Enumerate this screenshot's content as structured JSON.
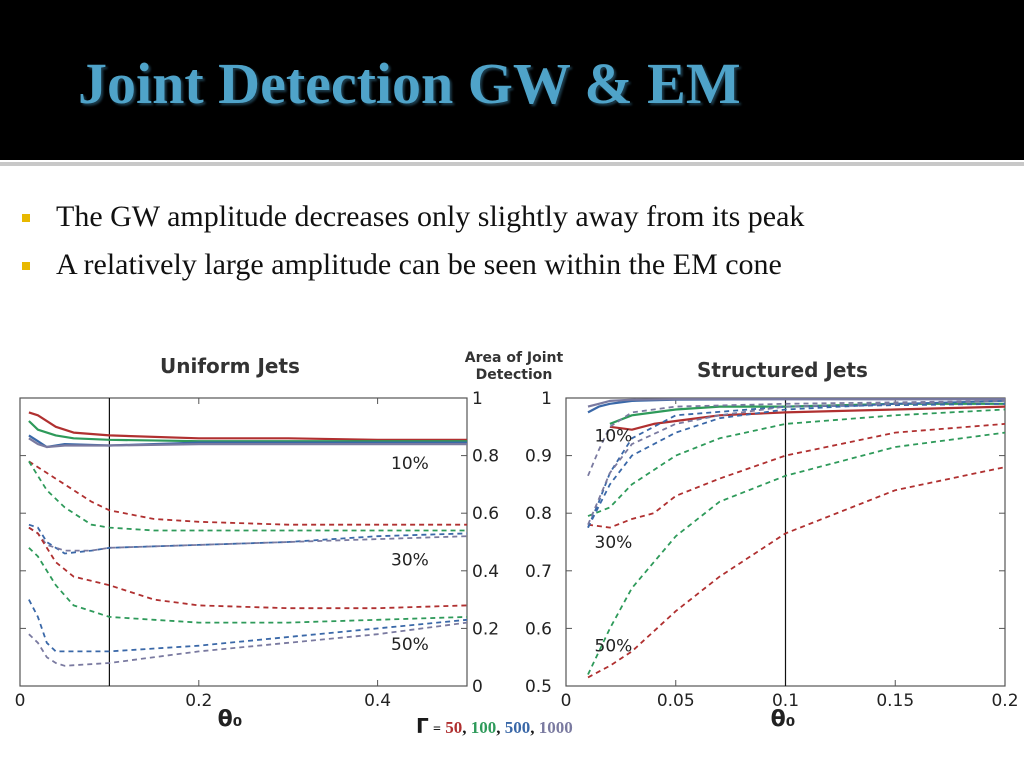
{
  "slide": {
    "title": "Joint Detection GW & EM",
    "bullets": [
      "The GW amplitude decreases only slightly away from its peak",
      "A relatively large amplitude can be seen within the EM cone"
    ],
    "mid_label_line1": "Area of Joint",
    "mid_label_line2": "Detection",
    "legend": {
      "symbol": "Γ",
      "eq": "=",
      "items": [
        {
          "label": "50",
          "color": "#b03030"
        },
        {
          "label": "100",
          "color": "#2e9a5a"
        },
        {
          "label": "500",
          "color": "#3a68a8"
        },
        {
          "label": "1000",
          "color": "#7a7aa0"
        }
      ]
    }
  },
  "chart_data": [
    {
      "type": "line",
      "title": "Uniform Jets",
      "xlabel": "θ₀",
      "ylabel": "Area of Joint Detection",
      "xlim": [
        0,
        0.5
      ],
      "ylim": [
        0,
        1
      ],
      "xticks": [
        "0",
        "0.2",
        "0.4"
      ],
      "xtick_values": [
        0,
        0.2,
        0.4
      ],
      "yticks": [
        "0",
        "0.2",
        "0.4",
        "0.6",
        "0.8",
        "1"
      ],
      "ytick_values": [
        0,
        0.2,
        0.4,
        0.6,
        0.8,
        1
      ],
      "vline": 0.1,
      "annotations": [
        {
          "text": "10%",
          "x": 0.415,
          "y": 0.775
        },
        {
          "text": "30%",
          "x": 0.415,
          "y": 0.44
        },
        {
          "text": "50%",
          "x": 0.415,
          "y": 0.145
        }
      ],
      "colors": {
        "50": "#b03030",
        "100": "#2e9a5a",
        "500": "#3a68a8",
        "1000": "#7a7aa0"
      },
      "series": [
        {
          "gamma": "50",
          "level": "10%",
          "dash": false,
          "x": [
            0.01,
            0.02,
            0.04,
            0.06,
            0.1,
            0.2,
            0.3,
            0.4,
            0.5
          ],
          "y": [
            0.95,
            0.94,
            0.9,
            0.88,
            0.87,
            0.86,
            0.86,
            0.855,
            0.855
          ]
        },
        {
          "gamma": "100",
          "level": "10%",
          "dash": false,
          "x": [
            0.01,
            0.02,
            0.04,
            0.06,
            0.1,
            0.2,
            0.3,
            0.4,
            0.5
          ],
          "y": [
            0.92,
            0.89,
            0.87,
            0.86,
            0.855,
            0.85,
            0.85,
            0.85,
            0.85
          ]
        },
        {
          "gamma": "500",
          "level": "10%",
          "dash": false,
          "x": [
            0.01,
            0.02,
            0.03,
            0.05,
            0.1,
            0.2,
            0.3,
            0.4,
            0.5
          ],
          "y": [
            0.87,
            0.85,
            0.83,
            0.84,
            0.835,
            0.845,
            0.845,
            0.845,
            0.845
          ]
        },
        {
          "gamma": "1000",
          "level": "10%",
          "dash": false,
          "x": [
            0.01,
            0.02,
            0.03,
            0.05,
            0.1,
            0.2,
            0.3,
            0.4,
            0.5
          ],
          "y": [
            0.86,
            0.84,
            0.83,
            0.835,
            0.835,
            0.84,
            0.84,
            0.84,
            0.84
          ]
        },
        {
          "gamma": "50",
          "level": "30%",
          "dash": true,
          "x": [
            0.01,
            0.03,
            0.05,
            0.08,
            0.1,
            0.15,
            0.2,
            0.3,
            0.4,
            0.5
          ],
          "y": [
            0.78,
            0.74,
            0.7,
            0.64,
            0.61,
            0.58,
            0.57,
            0.56,
            0.56,
            0.56
          ]
        },
        {
          "gamma": "100",
          "level": "30%",
          "dash": true,
          "x": [
            0.01,
            0.03,
            0.05,
            0.08,
            0.1,
            0.15,
            0.2,
            0.3,
            0.4,
            0.5
          ],
          "y": [
            0.78,
            0.68,
            0.62,
            0.56,
            0.55,
            0.54,
            0.54,
            0.54,
            0.54,
            0.54
          ]
        },
        {
          "gamma": "500",
          "level": "30%",
          "dash": true,
          "x": [
            0.01,
            0.02,
            0.03,
            0.05,
            0.08,
            0.1,
            0.2,
            0.3,
            0.4,
            0.5
          ],
          "y": [
            0.56,
            0.55,
            0.5,
            0.46,
            0.47,
            0.48,
            0.49,
            0.5,
            0.52,
            0.53
          ]
        },
        {
          "gamma": "1000",
          "level": "30%",
          "dash": true,
          "x": [
            0.01,
            0.02,
            0.03,
            0.05,
            0.08,
            0.1,
            0.2,
            0.3,
            0.4,
            0.5
          ],
          "y": [
            0.55,
            0.53,
            0.49,
            0.47,
            0.47,
            0.48,
            0.49,
            0.5,
            0.51,
            0.52
          ]
        },
        {
          "gamma": "50",
          "level": "50%",
          "dash": true,
          "x": [
            0.01,
            0.02,
            0.04,
            0.06,
            0.1,
            0.15,
            0.2,
            0.3,
            0.4,
            0.5
          ],
          "y": [
            0.55,
            0.53,
            0.43,
            0.38,
            0.35,
            0.3,
            0.28,
            0.27,
            0.27,
            0.28
          ]
        },
        {
          "gamma": "100",
          "level": "50%",
          "dash": true,
          "x": [
            0.01,
            0.02,
            0.04,
            0.06,
            0.1,
            0.15,
            0.2,
            0.3,
            0.4,
            0.5
          ],
          "y": [
            0.48,
            0.45,
            0.35,
            0.28,
            0.24,
            0.23,
            0.22,
            0.22,
            0.23,
            0.24
          ]
        },
        {
          "gamma": "500",
          "level": "50%",
          "dash": true,
          "x": [
            0.01,
            0.02,
            0.03,
            0.04,
            0.05,
            0.1,
            0.2,
            0.3,
            0.4,
            0.5
          ],
          "y": [
            0.3,
            0.24,
            0.15,
            0.12,
            0.12,
            0.12,
            0.14,
            0.17,
            0.2,
            0.23
          ]
        },
        {
          "gamma": "1000",
          "level": "50%",
          "dash": true,
          "x": [
            0.01,
            0.02,
            0.03,
            0.04,
            0.05,
            0.1,
            0.2,
            0.3,
            0.4,
            0.5
          ],
          "y": [
            0.18,
            0.15,
            0.1,
            0.08,
            0.07,
            0.08,
            0.12,
            0.15,
            0.18,
            0.22
          ]
        }
      ]
    },
    {
      "type": "line",
      "title": "Structured Jets",
      "xlabel": "θ₀",
      "ylabel": "Area of Joint Detection",
      "xlim": [
        0,
        0.2
      ],
      "ylim": [
        0.5,
        1
      ],
      "xticks": [
        "0",
        "0.05",
        "0.1",
        "0.15",
        "0.2"
      ],
      "xtick_values": [
        0,
        0.05,
        0.1,
        0.15,
        0.2
      ],
      "yticks": [
        "0.5",
        "0.6",
        "0.7",
        "0.8",
        "0.9",
        "1"
      ],
      "ytick_values": [
        0.5,
        0.6,
        0.7,
        0.8,
        0.9,
        1
      ],
      "vline": 0.1,
      "annotations": [
        {
          "text": "10%",
          "x": 0.013,
          "y": 0.935
        },
        {
          "text": "30%",
          "x": 0.013,
          "y": 0.75
        },
        {
          "text": "50%",
          "x": 0.013,
          "y": 0.57
        }
      ],
      "colors": {
        "50": "#b03030",
        "100": "#2e9a5a",
        "500": "#3a68a8",
        "1000": "#7a7aa0"
      },
      "series": [
        {
          "gamma": "50",
          "level": "10%",
          "dash": false,
          "x": [
            0.02,
            0.03,
            0.04,
            0.05,
            0.07,
            0.1,
            0.15,
            0.2
          ],
          "y": [
            0.95,
            0.945,
            0.955,
            0.96,
            0.97,
            0.975,
            0.98,
            0.985
          ]
        },
        {
          "gamma": "100",
          "level": "10%",
          "dash": false,
          "x": [
            0.02,
            0.03,
            0.05,
            0.07,
            0.1,
            0.15,
            0.2
          ],
          "y": [
            0.955,
            0.97,
            0.98,
            0.985,
            0.985,
            0.99,
            0.99
          ]
        },
        {
          "gamma": "500",
          "level": "10%",
          "dash": false,
          "x": [
            0.01,
            0.015,
            0.02,
            0.03,
            0.05,
            0.1,
            0.2
          ],
          "y": [
            0.975,
            0.985,
            0.99,
            0.995,
            0.997,
            0.998,
            0.998
          ]
        },
        {
          "gamma": "1000",
          "level": "10%",
          "dash": false,
          "x": [
            0.01,
            0.015,
            0.02,
            0.03,
            0.05,
            0.1,
            0.2
          ],
          "y": [
            0.985,
            0.99,
            0.995,
            0.997,
            0.998,
            0.998,
            0.998
          ]
        },
        {
          "gamma": "50",
          "level": "30%",
          "dash": true,
          "x": [
            0.01,
            0.02,
            0.03,
            0.04,
            0.05,
            0.07,
            0.1,
            0.15,
            0.2
          ],
          "y": [
            0.78,
            0.775,
            0.79,
            0.8,
            0.83,
            0.86,
            0.9,
            0.94,
            0.955
          ]
        },
        {
          "gamma": "100",
          "level": "30%",
          "dash": true,
          "x": [
            0.01,
            0.02,
            0.03,
            0.05,
            0.07,
            0.1,
            0.15,
            0.2
          ],
          "y": [
            0.795,
            0.81,
            0.85,
            0.9,
            0.93,
            0.955,
            0.97,
            0.98
          ]
        },
        {
          "gamma": "500",
          "level": "30%",
          "dash": true,
          "x": [
            0.01,
            0.015,
            0.02,
            0.03,
            0.05,
            0.1,
            0.2
          ],
          "y": [
            0.775,
            0.82,
            0.87,
            0.93,
            0.97,
            0.985,
            0.99
          ]
        },
        {
          "gamma": "1000",
          "level": "30%",
          "dash": true,
          "x": [
            0.01,
            0.015,
            0.02,
            0.03,
            0.05,
            0.1,
            0.2
          ],
          "y": [
            0.865,
            0.91,
            0.95,
            0.975,
            0.985,
            0.99,
            0.995
          ]
        },
        {
          "gamma": "50",
          "level": "50%",
          "dash": true,
          "x": [
            0.01,
            0.02,
            0.03,
            0.05,
            0.07,
            0.1,
            0.15,
            0.2
          ],
          "y": [
            0.515,
            0.535,
            0.56,
            0.63,
            0.69,
            0.765,
            0.84,
            0.88
          ]
        },
        {
          "gamma": "100",
          "level": "50%",
          "dash": true,
          "x": [
            0.01,
            0.02,
            0.03,
            0.05,
            0.07,
            0.1,
            0.15,
            0.2
          ],
          "y": [
            0.52,
            0.6,
            0.67,
            0.76,
            0.82,
            0.865,
            0.915,
            0.94
          ]
        },
        {
          "gamma": "500",
          "level": "50%",
          "dash": true,
          "x": [
            0.01,
            0.02,
            0.03,
            0.05,
            0.07,
            0.1,
            0.15,
            0.2
          ],
          "y": [
            0.775,
            0.85,
            0.9,
            0.94,
            0.965,
            0.98,
            0.99,
            0.995
          ]
        },
        {
          "gamma": "1000",
          "level": "50%",
          "dash": true,
          "x": [
            0.01,
            0.02,
            0.03,
            0.05,
            0.07,
            0.1,
            0.15,
            0.2
          ],
          "y": [
            0.78,
            0.87,
            0.92,
            0.955,
            0.97,
            0.985,
            0.99,
            0.995
          ]
        }
      ]
    }
  ]
}
